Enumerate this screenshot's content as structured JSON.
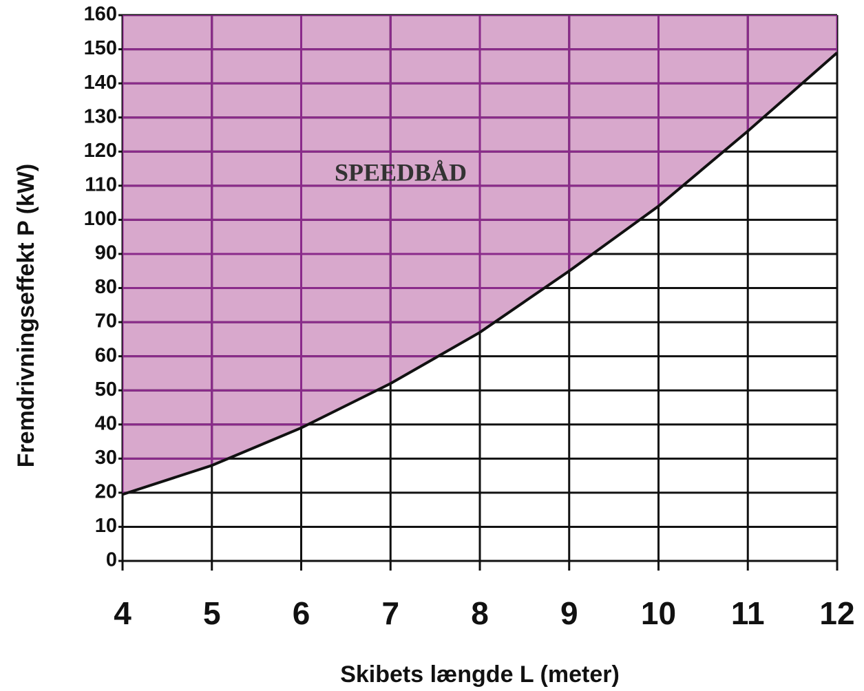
{
  "chart_data": {
    "type": "line",
    "x_label": "Skibets længde L (meter)",
    "y_label": "Fremdrivningseffekt P (kW)",
    "annotation": "SPEEDBÅD",
    "x": [
      4,
      5,
      6,
      7,
      8,
      9,
      10,
      11,
      12
    ],
    "values": [
      19.5,
      28,
      39,
      52,
      67,
      85,
      104,
      126,
      149
    ],
    "color": "#111111",
    "shade": "above",
    "shade_color": "#d8a8cc",
    "shade_grid_color": "#8a2a8a",
    "xlim": [
      4,
      12
    ],
    "xticks": [
      4,
      5,
      6,
      7,
      8,
      9,
      10,
      11,
      12
    ],
    "ylim": [
      0,
      160
    ],
    "yticks": [
      0,
      10,
      20,
      30,
      40,
      50,
      60,
      70,
      80,
      90,
      100,
      110,
      120,
      130,
      140,
      150,
      160
    ],
    "grid": true
  }
}
